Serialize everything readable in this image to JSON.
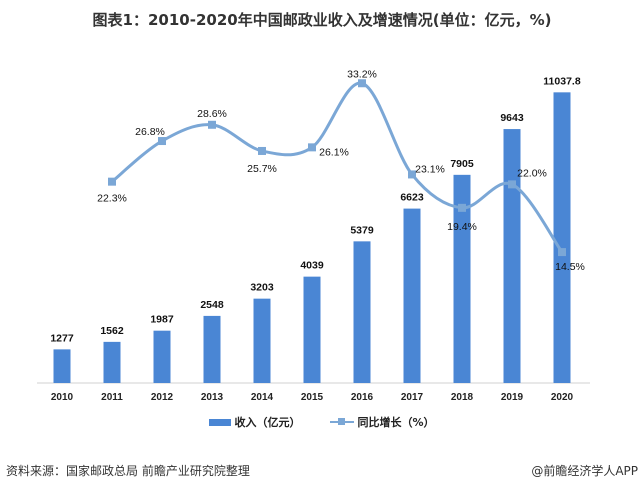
{
  "chart_data": {
    "type": "bar",
    "title": "图表1：2010-2020年中国邮政业收入及增速情况(单位：亿元，%)",
    "categories": [
      "2010",
      "2011",
      "2012",
      "2013",
      "2014",
      "2015",
      "2016",
      "2017",
      "2018",
      "2019",
      "2020"
    ],
    "series": [
      {
        "name": "收入（亿元）",
        "type": "bar",
        "axis": "left",
        "color": "#4a86d4",
        "values": [
          1277,
          1562,
          1987,
          2548,
          3203,
          4039,
          5379,
          6623,
          7905,
          9643,
          11037.8
        ],
        "labels": [
          "1277",
          "1562",
          "1987",
          "2548",
          "3203",
          "4039",
          "5379",
          "6623",
          "7905",
          "9643",
          "11037.8"
        ]
      },
      {
        "name": "同比增长（%）",
        "type": "line",
        "smooth": true,
        "axis": "right",
        "color": "#7ba7d6",
        "values": [
          null,
          22.3,
          26.8,
          28.6,
          25.7,
          26.1,
          33.2,
          23.1,
          19.4,
          22.0,
          14.5
        ],
        "labels": [
          "",
          "22.3%",
          "26.8%",
          "28.6%",
          "25.7%",
          "26.1%",
          "33.2%",
          "23.1%",
          "19.4%",
          "22.0%",
          "14.5%"
        ]
      }
    ],
    "ylim": [
      0,
      12000
    ],
    "y2lim": [
      0,
      35
    ],
    "axes_visible": false,
    "grid": false,
    "legend": "bottom"
  },
  "footer": {
    "source": "资料来源：国家邮政总局 前瞻产业研究院整理",
    "credit": "@前瞻经济学人APP"
  }
}
